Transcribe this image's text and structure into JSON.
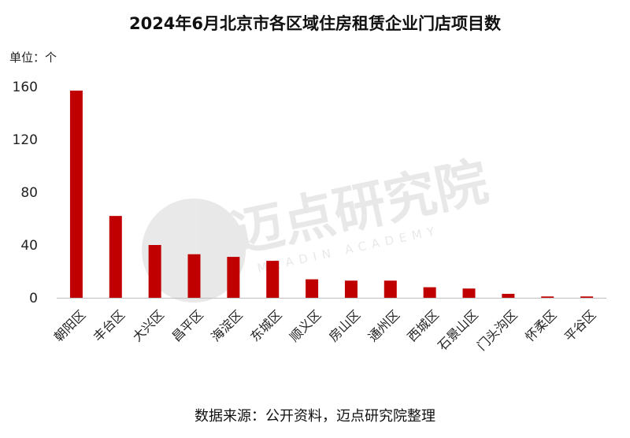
{
  "chart_data": {
    "type": "bar",
    "title": "2024年6月北京市各区域住房租赁企业门店项目数",
    "unit_label": "单位：个",
    "categories": [
      "朝阳区",
      "丰台区",
      "大兴区",
      "昌平区",
      "海淀区",
      "东城区",
      "顺义区",
      "房山区",
      "通州区",
      "西城区",
      "石景山区",
      "门头沟区",
      "怀柔区",
      "平谷区"
    ],
    "values": [
      157,
      62,
      40,
      33,
      31,
      28,
      14,
      13,
      13,
      8,
      7,
      3,
      1,
      1
    ],
    "ylim": [
      0,
      160
    ],
    "yticks": [
      0,
      40,
      80,
      120,
      160
    ],
    "grid": false,
    "legend": "none",
    "bar_color": "#c00000",
    "axis_color": "#bfbfbf",
    "source": "数据来源：公开资料，迈点研究院整理",
    "watermark": {
      "text_main": "迈点研究院",
      "text_sub": "MEADIN ACADEMY"
    }
  }
}
